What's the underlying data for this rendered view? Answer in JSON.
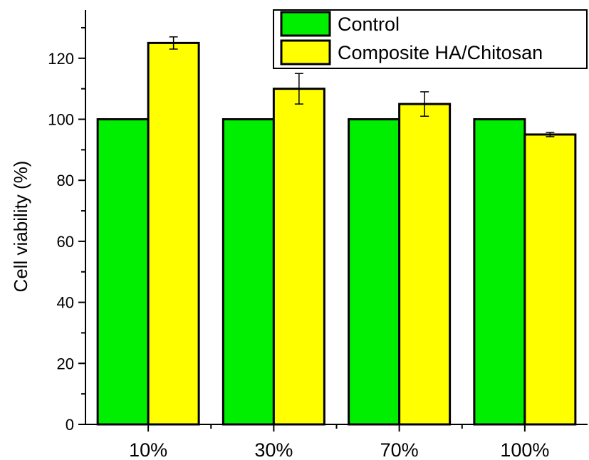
{
  "chart_data": {
    "type": "bar",
    "categories": [
      "10%",
      "30%",
      "70%",
      "100%"
    ],
    "ylabel": "Cell viability (%)",
    "xlabel": "",
    "ylim": [
      0,
      133
    ],
    "yticks": [
      0,
      20,
      40,
      60,
      80,
      100,
      120
    ],
    "legend_position": "top-right",
    "series": [
      {
        "name": "Control",
        "color": "#00ee00",
        "values": [
          100,
          100,
          100,
          100
        ],
        "errors": [
          0,
          0,
          0,
          0
        ]
      },
      {
        "name": "Composite HA/Chitosan",
        "color": "#ffff00",
        "values": [
          125,
          110,
          105,
          95
        ],
        "errors": [
          2,
          5,
          4,
          0.7
        ]
      }
    ]
  }
}
